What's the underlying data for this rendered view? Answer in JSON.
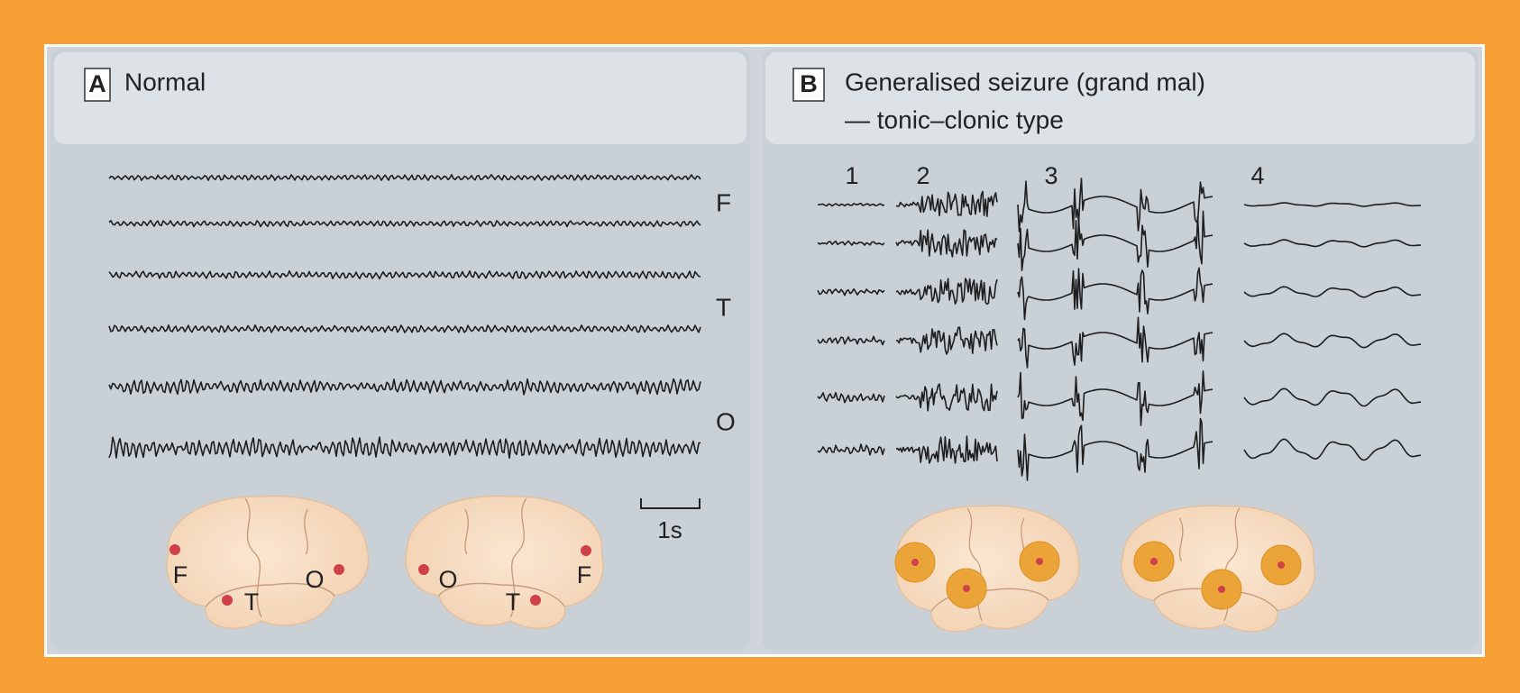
{
  "panel_a": {
    "letter": "A",
    "title": "Normal",
    "channel_labels": [
      "F",
      "T",
      "O"
    ],
    "scale_label": "1s",
    "brain_left": {
      "front": "F",
      "temporal": "T",
      "occipital": "O"
    },
    "brain_right": {
      "occipital": "O",
      "temporal": "T",
      "front": "F"
    }
  },
  "panel_b": {
    "letter": "B",
    "title": "Generalised seizure (grand mal)",
    "subtitle": "— tonic–clonic type",
    "phase_labels": [
      "1",
      "2",
      "3",
      "4"
    ]
  }
}
